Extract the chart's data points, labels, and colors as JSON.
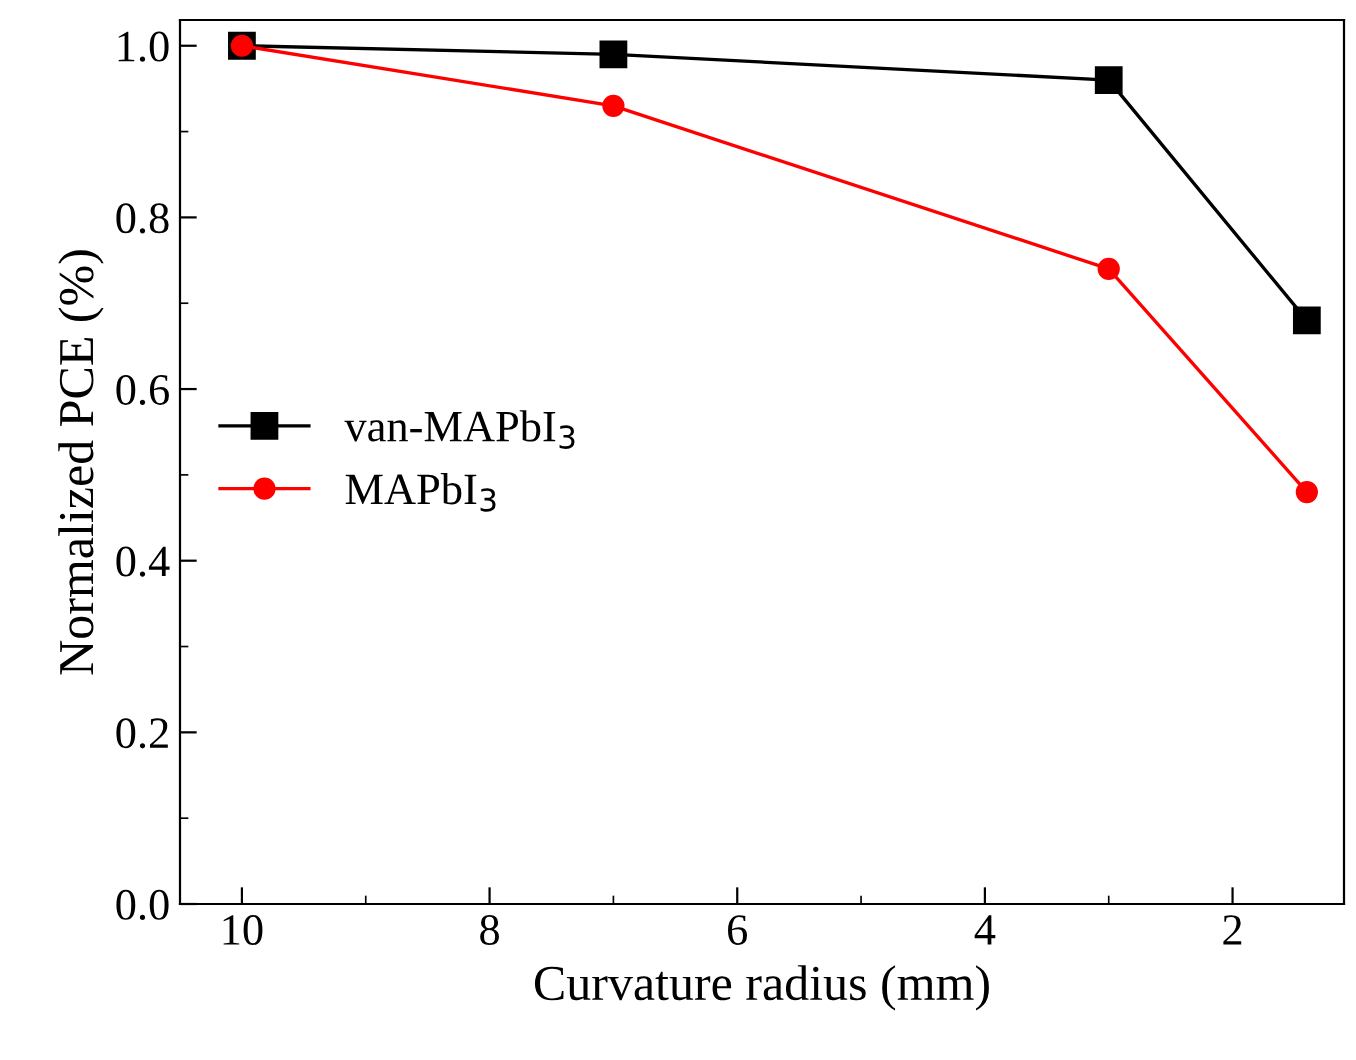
{
  "chart_data": {
    "type": "line",
    "xlabel": "Curvature radius (mm)",
    "ylabel": "Normalized PCE (%)",
    "x": [
      10,
      7,
      3,
      1.4
    ],
    "series": [
      {
        "name": "van-MAPbI$_{3}$",
        "color": "#000000",
        "values": [
          1.0,
          0.99,
          0.96,
          0.68
        ],
        "marker": "square"
      },
      {
        "name": "MAPbI$_{3}$",
        "color": "#ff0000",
        "values": [
          1.0,
          0.93,
          0.74,
          0.48
        ],
        "marker": "circle"
      }
    ],
    "xlim": [
      10.5,
      1.1
    ],
    "xticks": [
      10,
      8,
      6,
      4,
      2
    ],
    "ylim": [
      0,
      1.03
    ],
    "yticks": [
      {
        "value": 0,
        "label": "0.0"
      },
      0.2,
      0.4,
      0.6,
      0.8,
      {
        "value": 1,
        "label": "1.0"
      }
    ],
    "legend": "center left",
    "grid": false,
    "line_style": "solid"
  }
}
